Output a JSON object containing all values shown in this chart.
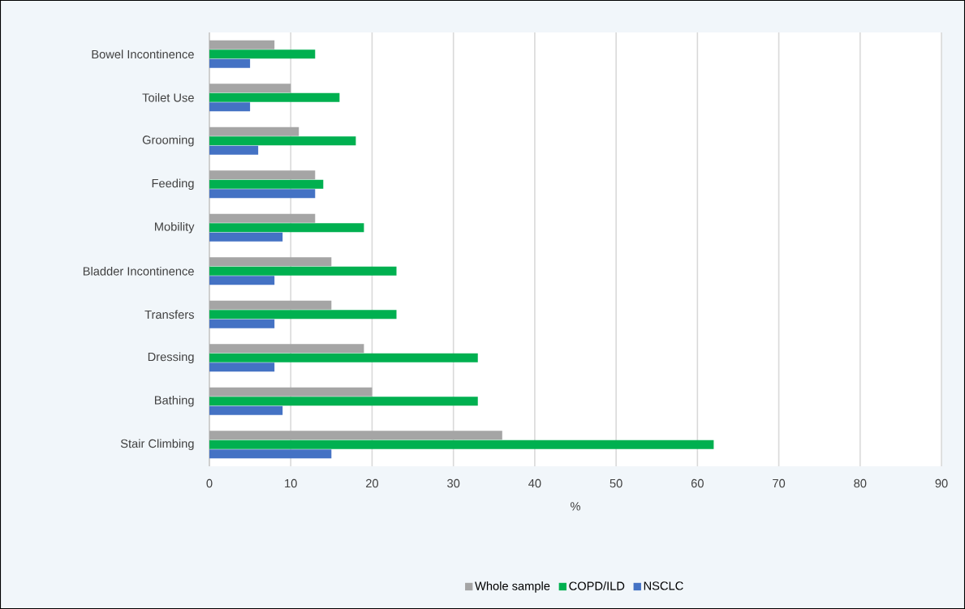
{
  "chart_data": {
    "type": "bar",
    "orientation": "horizontal",
    "xlabel": "%",
    "categories": [
      "Bowel Incontinence",
      "Toilet Use",
      "Grooming",
      "Feeding",
      "Mobility",
      "Bladder Incontinence",
      "Transfers",
      "Dressing",
      "Bathing",
      "Stair Climbing"
    ],
    "series": [
      {
        "name": "Whole sample",
        "color": "#a5a5a5",
        "values": [
          8,
          10,
          11,
          13,
          13,
          15,
          15,
          19,
          20,
          36
        ]
      },
      {
        "name": "COPD/ILD",
        "color": "#00b050",
        "values": [
          13,
          16,
          18,
          14,
          19,
          23,
          23,
          33,
          33,
          62
        ]
      },
      {
        "name": "NSCLC",
        "color": "#4472c4",
        "values": [
          5,
          5,
          6,
          13,
          9,
          8,
          8,
          8,
          9,
          15
        ]
      }
    ],
    "xlim": [
      0,
      90
    ],
    "xticks": [
      0,
      10,
      20,
      30,
      40,
      50,
      60,
      70,
      80,
      90
    ],
    "grid": "x",
    "legend": "bottom"
  }
}
